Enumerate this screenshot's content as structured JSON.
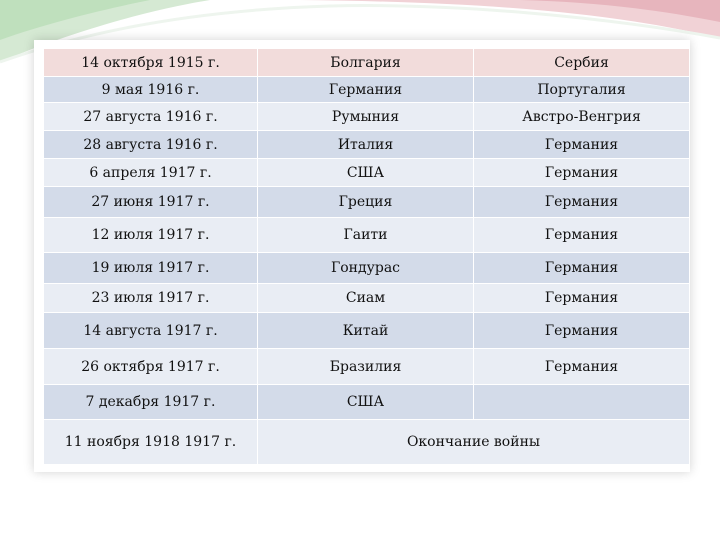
{
  "colors": {
    "header_row": "#f2dcdb",
    "row_dark": "#d3dbe9",
    "row_light": "#e9edf4",
    "decor_green": "#c4e0c4",
    "decor_pink": "#e9b0b8"
  },
  "rows": [
    {
      "date": "14 октября 1915 г.",
      "country": "Болгария",
      "enemy": "Сербия"
    },
    {
      "date": "9 мая 1916 г.",
      "country": "Германия",
      "enemy": "Португалия"
    },
    {
      "date": "27 августа 1916 г.",
      "country": "Румыния",
      "enemy": "Австро-Венгрия"
    },
    {
      "date": "28 августа 1916 г.",
      "country": "Италия",
      "enemy": "Германия"
    },
    {
      "date": "6 апреля 1917 г.",
      "country": "США",
      "enemy": "Германия"
    },
    {
      "date": "27 июня 1917 г.",
      "country": "Греция",
      "enemy": "Германия"
    },
    {
      "date": "12 июля  1917 г.",
      "country": "Гаити",
      "enemy": "Германия"
    },
    {
      "date": "19 июля 1917 г.",
      "country": "Гондурас",
      "enemy": "Германия"
    },
    {
      "date": "23 июля 1917 г.",
      "country": "Сиам",
      "enemy": "Германия"
    },
    {
      "date": "14 августа 1917 г.",
      "country": "Китай",
      "enemy": "Германия"
    },
    {
      "date": "26 октября 1917 г.",
      "country": "Бразилия",
      "enemy": "Германия"
    },
    {
      "date": "7 декабря 1917 г.",
      "country": "США",
      "enemy": ""
    }
  ],
  "last_row": {
    "date": "11 ноября 1918  1917 г.",
    "event": "Окончание войны"
  }
}
